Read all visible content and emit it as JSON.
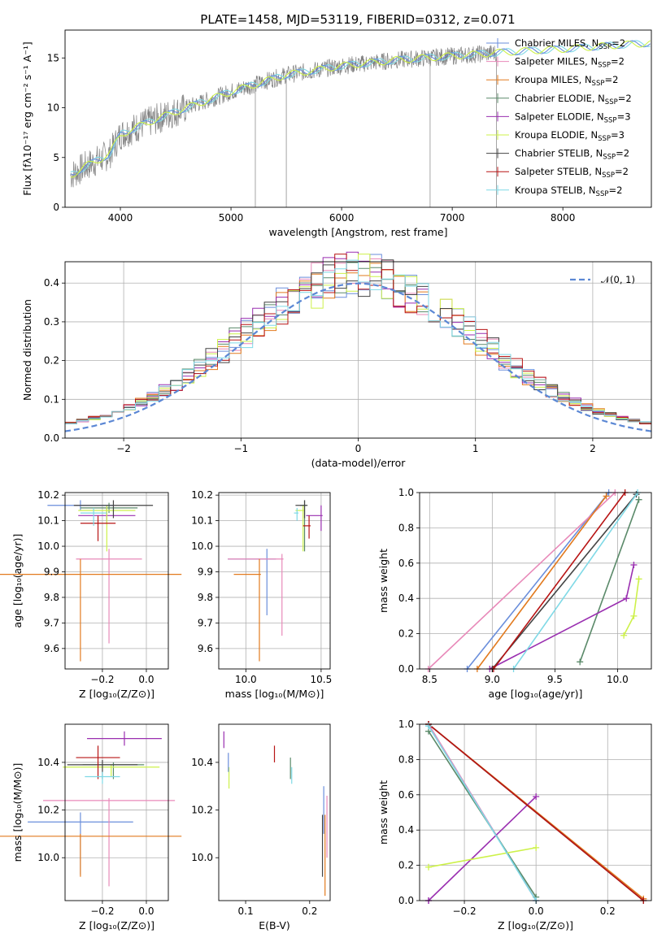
{
  "figure": {
    "title": "PLATE=1458, MJD=53119, FIBERID=0312, z=0.071"
  },
  "models": [
    {
      "label": "Chabrier MILES, N",
      "sub": "SSP",
      "suffix": "=2",
      "color": "#6a8edb"
    },
    {
      "label": "Salpeter MILES, N",
      "sub": "SSP",
      "suffix": "=2",
      "color": "#e889b9"
    },
    {
      "label": "Kroupa MILES, N",
      "sub": "SSP",
      "suffix": "=2",
      "color": "#e27a1e"
    },
    {
      "label": "Chabrier ELODIE, N",
      "sub": "SSP",
      "suffix": "=2",
      "color": "#5b8a6a"
    },
    {
      "label": "Salpeter ELODIE, N",
      "sub": "SSP",
      "suffix": "=3",
      "color": "#9a2fb0"
    },
    {
      "label": "Kroupa ELODIE, N",
      "sub": "SSP",
      "suffix": "=3",
      "color": "#cdf14a"
    },
    {
      "label": "Chabrier STELIB, N",
      "sub": "SSP",
      "suffix": "=2",
      "color": "#444444"
    },
    {
      "label": "Salpeter STELIB, N",
      "sub": "SSP",
      "suffix": "=2",
      "color": "#b81414"
    },
    {
      "label": "Kroupa STELIB, N",
      "sub": "SSP",
      "suffix": "=2",
      "color": "#7fd9e6"
    }
  ],
  "chart_data": [
    {
      "type": "line",
      "panel": "spectrum",
      "xlabel": "wavelength [Angstrom, rest frame]",
      "ylabel": "Flux [fλ10⁻¹⁷ erg cm⁻² s⁻¹ A⁻¹]",
      "xlim": [
        3500,
        8800
      ],
      "ylim": [
        0,
        17.8
      ],
      "xticks": [
        "4000",
        "5000",
        "6000",
        "7000",
        "8000"
      ],
      "yticks": [
        "0",
        "5",
        "10",
        "15"
      ],
      "continuum": {
        "x": [
          3550,
          3700,
          3900,
          4000,
          4200,
          4500,
          5000,
          5500,
          6000,
          6500,
          7000,
          7500,
          8000,
          8500,
          8800
        ],
        "y": [
          3.2,
          4.2,
          5.3,
          7.3,
          8.3,
          9.6,
          11.6,
          13.3,
          14.2,
          14.8,
          15.2,
          15.6,
          15.9,
          16.3,
          16.5
        ]
      },
      "observed_series": "data (grey)",
      "legend": "right"
    },
    {
      "type": "bar",
      "panel": "residual-histogram",
      "xlabel": "(data-model)/error",
      "ylabel": "Normed distribution",
      "xlim": [
        -2.5,
        2.5
      ],
      "ylim": [
        0,
        0.455
      ],
      "xticks": [
        "−2",
        "−1",
        "0",
        "1",
        "2"
      ],
      "yticks": [
        "0.0",
        "0.1",
        "0.2",
        "0.3",
        "0.4"
      ],
      "bin_width": 0.1,
      "reference": {
        "label": "𝒩(0, 1)",
        "mean": 0,
        "sigma": 1
      },
      "grid": true,
      "legend": "top-right"
    },
    {
      "type": "scatter",
      "panel": "age-vs-Z",
      "xlabel": "Z [log₁₀(Z/Z⊙)]",
      "ylabel": "age  [log₁₀(age/yr)]",
      "xlim": [
        -0.37,
        0.1
      ],
      "ylim": [
        9.52,
        10.21
      ],
      "xticks": [
        "−0.2",
        "0.0"
      ],
      "yticks": [
        "9.6",
        "9.7",
        "9.8",
        "9.9",
        "10.0",
        "10.1",
        "10.2"
      ],
      "grid": true,
      "points": [
        {
          "model": 0,
          "x": -0.3,
          "xerr": 0.15,
          "y": 10.16,
          "yerr": [
            0.02,
            0.02
          ]
        },
        {
          "model": 1,
          "x": -0.17,
          "xerr": 0.15,
          "y": 9.95,
          "yerr": [
            0.33,
            0.04
          ]
        },
        {
          "model": 2,
          "x": -0.3,
          "xerr": 0.46,
          "y": 9.89,
          "yerr": [
            0.34,
            0.06
          ]
        },
        {
          "model": 3,
          "x": -0.17,
          "xerr": 0.13,
          "y": 10.15,
          "yerr": [
            0.02,
            0.02
          ]
        },
        {
          "model": 4,
          "x": -0.18,
          "xerr": 0.13,
          "y": 10.12,
          "yerr": [
            0.03,
            0.03
          ]
        },
        {
          "model": 5,
          "x": -0.18,
          "xerr": 0.13,
          "y": 10.14,
          "yerr": [
            0.16,
            0.02
          ]
        },
        {
          "model": 6,
          "x": -0.15,
          "xerr": 0.18,
          "y": 10.16,
          "yerr": [
            0.05,
            0.02
          ]
        },
        {
          "model": 7,
          "x": -0.22,
          "xerr": 0.08,
          "y": 10.09,
          "yerr": [
            0.07,
            0.03
          ]
        },
        {
          "model": 8,
          "x": -0.24,
          "xerr": 0.06,
          "y": 10.13,
          "yerr": [
            0.05,
            0.02
          ]
        }
      ]
    },
    {
      "type": "scatter",
      "panel": "age-vs-mass",
      "xlabel": "mass [log₁₀(M/M⊙)]",
      "ylabel": "",
      "xlim": [
        9.82,
        10.56
      ],
      "ylim": [
        9.52,
        10.21
      ],
      "xticks": [
        "10.0",
        "10.5"
      ],
      "yticks": [
        "9.6",
        "9.7",
        "9.8",
        "9.9",
        "10.0",
        "10.1",
        "10.2"
      ],
      "grid": true,
      "points": [
        {
          "model": 0,
          "x": 10.14,
          "xerr": [
            0.26,
            0.06
          ],
          "y": 9.95,
          "yerr": [
            0.22,
            0.04
          ]
        },
        {
          "model": 1,
          "x": 10.24,
          "xerr": [
            0.36,
            0.01
          ],
          "y": 9.95,
          "yerr": [
            0.3,
            0.02
          ]
        },
        {
          "model": 2,
          "x": 10.09,
          "xerr": [
            0.17,
            0.01
          ],
          "y": 9.89,
          "yerr": [
            0.34,
            0.06
          ]
        },
        {
          "model": 3,
          "x": 10.39,
          "xerr": [
            0.03,
            0.01
          ],
          "y": 10.16,
          "yerr": [
            0.18,
            0.02
          ]
        },
        {
          "model": 4,
          "x": 10.5,
          "xerr": [
            0.1,
            0.01
          ],
          "y": 10.12,
          "yerr": [
            0.06,
            0.04
          ]
        },
        {
          "model": 5,
          "x": 10.38,
          "xerr": [
            0.05,
            0.01
          ],
          "y": 10.14,
          "yerr": [
            0.16,
            0.02
          ]
        },
        {
          "model": 6,
          "x": 10.39,
          "xerr": [
            0.06,
            0.02
          ],
          "y": 10.16,
          "yerr": [
            0.05,
            0.02
          ]
        },
        {
          "model": 7,
          "x": 10.42,
          "xerr": [
            0.04,
            0.01
          ],
          "y": 10.08,
          "yerr": [
            0.05,
            0.04
          ]
        },
        {
          "model": 8,
          "x": 10.34,
          "xerr": [
            0.02,
            0.01
          ],
          "y": 10.13,
          "yerr": [
            0.03,
            0.02
          ]
        }
      ]
    },
    {
      "type": "line",
      "panel": "cumulative-mass-weight-vs-age",
      "xlabel": "age  [log₁₀(age/yr)]",
      "ylabel": "mass weight",
      "xlim": [
        8.42,
        10.27
      ],
      "ylim": [
        0,
        1
      ],
      "xticks": [
        "8.5",
        "9.0",
        "9.5",
        "10.0"
      ],
      "yticks": [
        "0.0",
        "0.2",
        "0.4",
        "0.6",
        "0.8",
        "1.0"
      ],
      "grid": true,
      "series": [
        {
          "model": 0,
          "x": [
            8.8,
            9.93
          ],
          "y": [
            0.0,
            1.0
          ]
        },
        {
          "model": 1,
          "x": [
            8.49,
            9.98
          ],
          "y": [
            0.0,
            1.0
          ]
        },
        {
          "model": 2,
          "x": [
            8.88,
            9.91
          ],
          "y": [
            0.0,
            0.98
          ]
        },
        {
          "model": 3,
          "x": [
            9.7,
            10.17
          ],
          "y": [
            0.04,
            0.96
          ]
        },
        {
          "model": 4,
          "x": [
            8.98,
            10.07,
            10.13
          ],
          "y": [
            0.0,
            0.4,
            0.59
          ]
        },
        {
          "model": 5,
          "x": [
            10.05,
            10.13,
            10.17
          ],
          "y": [
            0.19,
            0.3,
            0.51
          ]
        },
        {
          "model": 6,
          "x": [
            9.0,
            10.15
          ],
          "y": [
            0.0,
            0.99
          ]
        },
        {
          "model": 7,
          "x": [
            9.01,
            10.06
          ],
          "y": [
            0.0,
            1.0
          ]
        },
        {
          "model": 8,
          "x": [
            9.17,
            10.16
          ],
          "y": [
            0.0,
            1.0
          ]
        }
      ]
    },
    {
      "type": "scatter",
      "panel": "mass-vs-Z",
      "xlabel": "Z [log₁₀(Z/Z⊙)]",
      "ylabel": "mass [log₁₀(M/M⊙)]",
      "xlim": [
        -0.37,
        0.1
      ],
      "ylim": [
        9.82,
        10.56
      ],
      "xticks": [
        "−0.2",
        "0.0"
      ],
      "yticks": [
        "10.0",
        "10.2",
        "10.4"
      ],
      "grid": true,
      "points": [
        {
          "model": 0,
          "x": -0.3,
          "xerr": 0.24,
          "y": 10.15,
          "yerr": [
            0.22,
            0.04
          ]
        },
        {
          "model": 1,
          "x": -0.17,
          "xerr": 0.3,
          "y": 10.24,
          "yerr": [
            0.36,
            0.01
          ]
        },
        {
          "model": 2,
          "x": -0.3,
          "xerr": 0.46,
          "y": 10.09,
          "yerr": [
            0.17,
            0.01
          ]
        },
        {
          "model": 3,
          "x": -0.15,
          "xerr": 0.14,
          "y": 10.39,
          "yerr": [
            0.06,
            0.01
          ]
        },
        {
          "model": 4,
          "x": -0.1,
          "xerr": 0.17,
          "y": 10.5,
          "yerr": [
            0.03,
            0.03
          ]
        },
        {
          "model": 5,
          "x": -0.16,
          "xerr": 0.22,
          "y": 10.38,
          "yerr": [
            0.04,
            0.01
          ]
        },
        {
          "model": 6,
          "x": -0.2,
          "xerr": 0.16,
          "y": 10.39,
          "yerr": [
            0.06,
            0.02
          ]
        },
        {
          "model": 7,
          "x": -0.22,
          "xerr": 0.1,
          "y": 10.42,
          "yerr": [
            0.09,
            0.05
          ]
        },
        {
          "model": 8,
          "x": -0.2,
          "xerr": 0.08,
          "y": 10.34,
          "yerr": [
            0.03,
            0.02
          ]
        }
      ]
    },
    {
      "type": "scatter",
      "panel": "mass-vs-EBV",
      "xlabel": "E(B-V)",
      "ylabel": "",
      "xlim": [
        0.058,
        0.232
      ],
      "ylim": [
        9.82,
        10.56
      ],
      "xticks": [
        "0.1",
        "0.2"
      ],
      "yticks": [
        "10.0",
        "10.2",
        "10.4"
      ],
      "grid": false,
      "points": [
        {
          "model": 0,
          "x": 0.222,
          "yerr": [
            10.1,
            10.3
          ],
          "y": 10.15
        },
        {
          "model": 1,
          "x": 0.227,
          "yerr": [
            10.0,
            10.26
          ],
          "y": 10.15
        },
        {
          "model": 2,
          "x": 0.224,
          "yerr": [
            9.84,
            10.18
          ],
          "y": 10.09
        },
        {
          "model": 3,
          "x": 0.17,
          "yerr": [
            10.33,
            10.42
          ],
          "y": 10.38
        },
        {
          "model": 4,
          "x": 0.066,
          "yerr": [
            10.46,
            10.53
          ],
          "y": 10.5
        },
        {
          "model": 5,
          "x": 0.074,
          "yerr": [
            10.29,
            10.38
          ],
          "y": 10.34
        },
        {
          "model": 6,
          "x": 0.22,
          "yerr": [
            9.92,
            10.18
          ],
          "y": 10.1
        },
        {
          "model": 7,
          "x": 0.145,
          "yerr": [
            10.4,
            10.47
          ],
          "y": 10.44
        },
        {
          "model": 8,
          "x": 0.172,
          "yerr": [
            10.31,
            10.38
          ],
          "y": 10.35
        },
        {
          "model": 0,
          "x": 0.073,
          "yerr": [
            10.36,
            10.44
          ],
          "y": 10.4
        }
      ]
    },
    {
      "type": "line",
      "panel": "cumulative-mass-weight-vs-Z",
      "xlabel": "Z [log₁₀(Z/Z⊙)]",
      "ylabel": "mass weight",
      "xlim": [
        -0.325,
        0.322
      ],
      "ylim": [
        0,
        1
      ],
      "xticks": [
        "−0.2",
        "0.0",
        "0.2"
      ],
      "yticks": [
        "0.0",
        "0.2",
        "0.4",
        "0.6",
        "0.8",
        "1.0"
      ],
      "grid": true,
      "series": [
        {
          "model": 0,
          "x": [
            -0.3,
            0.0
          ],
          "y": [
            1.0,
            0.0
          ]
        },
        {
          "model": 1,
          "x": [
            -0.3,
            0.0
          ],
          "y": [
            1.0,
            0.0
          ]
        },
        {
          "model": 2,
          "x": [
            -0.3,
            0.3
          ],
          "y": [
            1.0,
            0.01
          ]
        },
        {
          "model": 3,
          "x": [
            -0.3,
            0.0
          ],
          "y": [
            0.96,
            0.02
          ]
        },
        {
          "model": 4,
          "x": [
            -0.3,
            0.0,
            -0.3
          ],
          "y": [
            0.0,
            0.59,
            0.0
          ]
        },
        {
          "model": 5,
          "x": [
            -0.3,
            0.0
          ],
          "y": [
            0.19,
            0.3
          ]
        },
        {
          "model": 6,
          "x": [
            -0.3,
            0.3
          ],
          "y": [
            1.0,
            0.0
          ]
        },
        {
          "model": 7,
          "x": [
            -0.3,
            0.3
          ],
          "y": [
            1.0,
            0.0
          ]
        },
        {
          "model": 8,
          "x": [
            -0.3,
            0.0
          ],
          "y": [
            0.99,
            0.0
          ]
        }
      ]
    }
  ]
}
